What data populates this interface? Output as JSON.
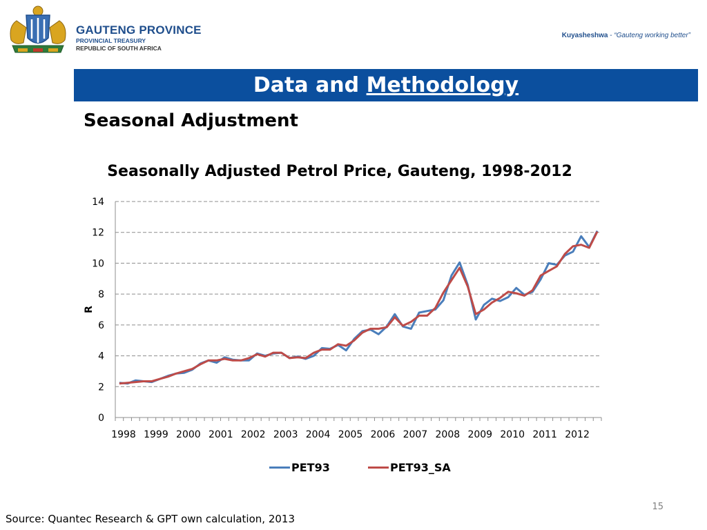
{
  "header": {
    "org_name": "GAUTENG PROVINCE",
    "org_line2": "PROVINCIAL TREASURY",
    "org_line3": "REPUBLIC OF SOUTH AFRICA",
    "tagline_brand": "Kuyasheshwa",
    "tagline_sep": " - ",
    "tagline_quote": "“Gauteng working better”"
  },
  "banner": {
    "title_part1": "Data and ",
    "title_part2": "Methodology"
  },
  "subtitle": "Seasonal Adjustment",
  "footer": {
    "source": "Source: Quantec Research & GPT own calculation, 2013",
    "page_number": "15"
  },
  "colors": {
    "banner": "#0b4f9e",
    "pet93": "#4a7ebb",
    "pet93_sa": "#be4b48",
    "grid": "#8c8c8c"
  },
  "chart_data": {
    "type": "line",
    "title": "Seasonally Adjusted Petrol Price, Gauteng, 1998-2012",
    "ylabel": "R",
    "ylim": [
      0,
      14
    ],
    "yticks": [
      0,
      2,
      4,
      6,
      8,
      10,
      12,
      14
    ],
    "x_tick_labels": [
      "1998",
      "1999",
      "2000",
      "2001",
      "2002",
      "2003",
      "2004",
      "2005",
      "2006",
      "2007",
      "2008",
      "2009",
      "2010",
      "2011",
      "2012"
    ],
    "points_per_year": 4,
    "grid": "horizontal dashed",
    "legend_position": "bottom",
    "series": [
      {
        "name": "PET93",
        "color": "#4a7ebb",
        "values": [
          2.25,
          2.2,
          2.4,
          2.35,
          2.3,
          2.5,
          2.7,
          2.85,
          2.9,
          3.1,
          3.5,
          3.7,
          3.55,
          3.9,
          3.75,
          3.7,
          3.7,
          4.15,
          4.0,
          4.15,
          4.2,
          3.85,
          3.95,
          3.8,
          4.0,
          4.5,
          4.45,
          4.7,
          4.35,
          5.1,
          5.6,
          5.7,
          5.4,
          5.9,
          6.7,
          5.9,
          5.75,
          6.8,
          6.9,
          7.0,
          7.6,
          9.2,
          10.05,
          8.6,
          6.35,
          7.3,
          7.7,
          7.55,
          7.8,
          8.4,
          7.95,
          8.15,
          8.95,
          10.0,
          9.9,
          10.5,
          10.75,
          11.75,
          11.05,
          12.1
        ]
      },
      {
        "name": "PET93_SA",
        "color": "#be4b48",
        "values": [
          2.2,
          2.25,
          2.3,
          2.35,
          2.35,
          2.5,
          2.65,
          2.85,
          3.0,
          3.15,
          3.45,
          3.7,
          3.7,
          3.8,
          3.7,
          3.7,
          3.85,
          4.1,
          3.95,
          4.2,
          4.2,
          3.85,
          3.9,
          3.85,
          4.2,
          4.4,
          4.4,
          4.75,
          4.65,
          5.0,
          5.5,
          5.75,
          5.75,
          5.85,
          6.5,
          5.95,
          6.2,
          6.6,
          6.6,
          7.1,
          8.1,
          8.9,
          9.7,
          8.5,
          6.7,
          7.0,
          7.45,
          7.75,
          8.15,
          8.05,
          7.9,
          8.25,
          9.2,
          9.5,
          9.8,
          10.6,
          11.1,
          11.2,
          11.0,
          12.05
        ]
      }
    ]
  }
}
